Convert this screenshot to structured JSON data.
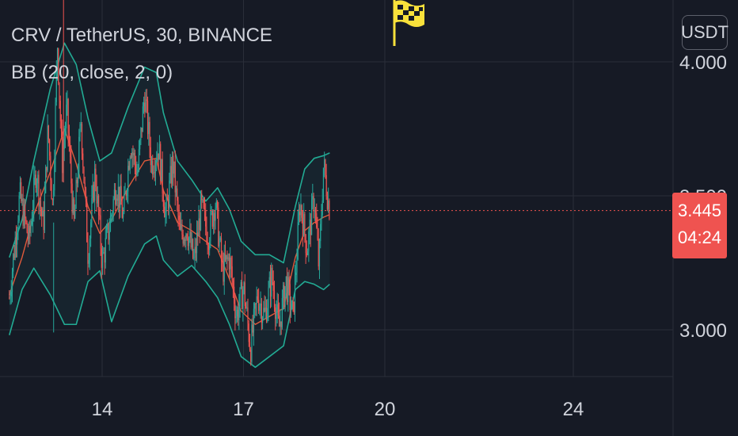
{
  "header": {
    "symbol_line": "CRV / TetherUS, 30, BINANCE",
    "indicator_line": "BB (20, close, 2, 0)"
  },
  "price_scale": {
    "unit_label": "USDT",
    "current_price": "3.445",
    "countdown": "04:24"
  },
  "icons": {
    "flag": "checkered-flag-icon"
  },
  "colors": {
    "background": "#161a25",
    "grid": "#2a2e39",
    "up": "#26a69a",
    "down": "#ef5350",
    "band": "#22ab94",
    "basis": "#e05a3b",
    "flag": "#f9e13b"
  },
  "chart_data": {
    "type": "candlestick",
    "title": "CRV / TetherUS, 30, BINANCE",
    "indicator": "BB (20, close, 2, 0)",
    "x_ticks": [
      "14",
      "17",
      "20",
      "24"
    ],
    "y_ticks": [
      {
        "value": 4.0,
        "label": "4.000"
      },
      {
        "value": 3.5,
        "label": "3.500"
      },
      {
        "value": 3.0,
        "label": "3.000"
      }
    ],
    "ylim": [
      2.83,
      4.24
    ],
    "last_price": 3.445,
    "upper_band": [
      [
        12.03,
        3.27
      ],
      [
        12.3,
        3.41
      ],
      [
        12.55,
        3.63
      ],
      [
        12.9,
        3.9
      ],
      [
        13.2,
        4.07
      ],
      [
        13.45,
        3.99
      ],
      [
        13.7,
        3.79
      ],
      [
        13.95,
        3.63
      ],
      [
        14.2,
        3.66
      ],
      [
        14.55,
        3.83
      ],
      [
        14.9,
        3.98
      ],
      [
        15.15,
        3.96
      ],
      [
        15.3,
        3.81
      ],
      [
        15.6,
        3.63
      ],
      [
        15.9,
        3.56
      ],
      [
        16.2,
        3.48
      ],
      [
        16.45,
        3.53
      ],
      [
        16.7,
        3.45
      ],
      [
        16.95,
        3.33
      ],
      [
        17.25,
        3.28
      ],
      [
        17.55,
        3.28
      ],
      [
        17.85,
        3.25
      ],
      [
        18.1,
        3.46
      ],
      [
        18.3,
        3.6
      ],
      [
        18.5,
        3.64
      ],
      [
        18.7,
        3.65
      ],
      [
        18.83,
        3.66
      ]
    ],
    "lower_band": [
      [
        12.03,
        2.98
      ],
      [
        12.3,
        3.15
      ],
      [
        12.55,
        3.23
      ],
      [
        12.9,
        3.13
      ],
      [
        13.2,
        3.02
      ],
      [
        13.45,
        3.02
      ],
      [
        13.7,
        3.18
      ],
      [
        13.95,
        3.22
      ],
      [
        14.2,
        3.03
      ],
      [
        14.55,
        3.2
      ],
      [
        14.9,
        3.32
      ],
      [
        15.15,
        3.35
      ],
      [
        15.3,
        3.26
      ],
      [
        15.6,
        3.2
      ],
      [
        15.9,
        3.24
      ],
      [
        16.2,
        3.18
      ],
      [
        16.45,
        3.12
      ],
      [
        16.7,
        3.02
      ],
      [
        16.95,
        2.9
      ],
      [
        17.25,
        2.86
      ],
      [
        17.55,
        2.9
      ],
      [
        17.85,
        2.94
      ],
      [
        18.1,
        3.15
      ],
      [
        18.3,
        3.18
      ],
      [
        18.5,
        3.17
      ],
      [
        18.7,
        3.15
      ],
      [
        18.83,
        3.17
      ]
    ],
    "basis": [
      [
        12.03,
        3.13
      ],
      [
        12.3,
        3.27
      ],
      [
        12.55,
        3.43
      ],
      [
        12.9,
        3.59
      ],
      [
        13.2,
        3.75
      ],
      [
        13.45,
        3.62
      ],
      [
        13.7,
        3.46
      ],
      [
        13.95,
        3.36
      ],
      [
        14.2,
        3.41
      ],
      [
        14.55,
        3.53
      ],
      [
        14.9,
        3.63
      ],
      [
        15.15,
        3.64
      ],
      [
        15.3,
        3.52
      ],
      [
        15.6,
        3.4
      ],
      [
        15.9,
        3.37
      ],
      [
        16.2,
        3.33
      ],
      [
        16.45,
        3.3
      ],
      [
        16.7,
        3.19
      ],
      [
        16.95,
        3.07
      ],
      [
        17.25,
        3.02
      ],
      [
        17.55,
        3.05
      ],
      [
        17.85,
        3.08
      ],
      [
        18.1,
        3.27
      ],
      [
        18.3,
        3.37
      ],
      [
        18.5,
        3.4
      ],
      [
        18.7,
        3.42
      ],
      [
        18.83,
        3.43
      ]
    ],
    "close_path": [
      [
        12.03,
        3.12
      ],
      [
        12.25,
        3.5
      ],
      [
        12.45,
        3.33
      ],
      [
        12.6,
        3.6
      ],
      [
        12.75,
        3.38
      ],
      [
        12.85,
        3.75
      ],
      [
        12.95,
        3.46
      ],
      [
        13.05,
        4.07
      ],
      [
        13.15,
        3.62
      ],
      [
        13.25,
        3.83
      ],
      [
        13.4,
        3.38
      ],
      [
        13.55,
        3.78
      ],
      [
        13.7,
        3.28
      ],
      [
        13.85,
        3.59
      ],
      [
        14.0,
        3.25
      ],
      [
        14.15,
        3.38
      ],
      [
        14.3,
        3.55
      ],
      [
        14.45,
        3.42
      ],
      [
        14.6,
        3.7
      ],
      [
        14.75,
        3.58
      ],
      [
        14.9,
        3.88
      ],
      [
        15.05,
        3.62
      ],
      [
        15.2,
        3.68
      ],
      [
        15.35,
        3.42
      ],
      [
        15.5,
        3.63
      ],
      [
        15.65,
        3.35
      ],
      [
        15.8,
        3.38
      ],
      [
        15.95,
        3.25
      ],
      [
        16.1,
        3.46
      ],
      [
        16.25,
        3.35
      ],
      [
        16.4,
        3.48
      ],
      [
        16.55,
        3.22
      ],
      [
        16.7,
        3.27
      ],
      [
        16.85,
        3.05
      ],
      [
        17.0,
        3.16
      ],
      [
        17.15,
        2.93
      ],
      [
        17.3,
        3.13
      ],
      [
        17.45,
        3.05
      ],
      [
        17.6,
        3.2
      ],
      [
        17.75,
        3.0
      ],
      [
        17.9,
        3.18
      ],
      [
        18.05,
        3.05
      ],
      [
        18.2,
        3.48
      ],
      [
        18.35,
        3.3
      ],
      [
        18.5,
        3.5
      ],
      [
        18.6,
        3.23
      ],
      [
        18.7,
        3.62
      ],
      [
        18.8,
        3.48
      ],
      [
        18.84,
        3.445
      ]
    ]
  }
}
